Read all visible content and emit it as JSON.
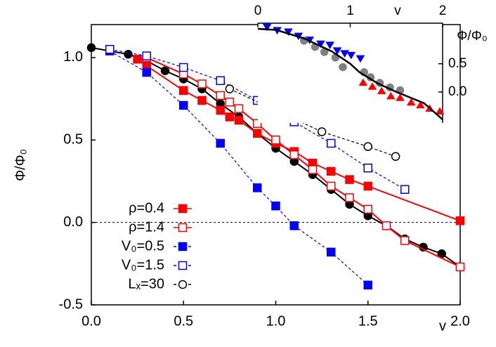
{
  "chart_data": [
    {
      "type": "scatter",
      "x_label": "v",
      "y_label": "Φ/Φ₀",
      "xlim": [
        0,
        2
      ],
      "ylim": [
        -0.5,
        1.2
      ],
      "xticks": [
        {
          "value": 0,
          "label": "0.0"
        },
        0.5,
        {
          "value": 1,
          "label": "1.0"
        },
        1.5,
        {
          "value": 2,
          "label": "2.0"
        }
      ],
      "yticks": [
        -0.5,
        {
          "value": 0,
          "label": "0.0"
        },
        0.5,
        {
          "value": 1,
          "label": "1.0"
        }
      ],
      "zero_line": true,
      "legend": "lower left",
      "series": [
        {
          "color": "#000000",
          "marker": "circle",
          "filled": true,
          "line": "solid",
          "x": [
            0,
            0.2,
            0.3,
            0.4,
            0.5,
            0.6,
            0.7,
            0.8,
            0.9,
            1.0,
            1.1,
            1.2,
            1.3,
            1.4,
            1.5,
            1.6,
            1.7,
            1.8,
            1.9,
            2.0
          ],
          "values": [
            1.06,
            1.02,
            0.98,
            0.92,
            0.87,
            0.81,
            0.72,
            0.64,
            0.54,
            0.45,
            0.37,
            0.29,
            0.2,
            0.11,
            0.04,
            -0.02,
            -0.1,
            -0.15,
            -0.19,
            -0.27
          ]
        },
        {
          "name": "ρ=0.4",
          "color": "#ff0000",
          "marker": "square",
          "filled": true,
          "line": "solid",
          "x": [
            0.25,
            0.3,
            0.5,
            0.6,
            0.7,
            0.75,
            0.8,
            0.9,
            1.0,
            1.1,
            1.2,
            1.3,
            1.4,
            1.5,
            2.0
          ],
          "values": [
            0.99,
            0.95,
            0.8,
            0.74,
            0.68,
            0.64,
            0.62,
            0.54,
            0.48,
            0.43,
            0.36,
            0.31,
            0.26,
            0.22,
            0.01
          ]
        },
        {
          "name": "ρ=1.4",
          "color": "#ff0000",
          "marker": "square",
          "filled": false,
          "line": "solid",
          "x": [
            0.3,
            0.5,
            0.6,
            0.7,
            0.75,
            0.8,
            0.9,
            1.0,
            1.1,
            1.2,
            1.3,
            1.4,
            1.5,
            1.6,
            1.7,
            2.0
          ],
          "values": [
            1.0,
            0.9,
            0.84,
            0.77,
            0.73,
            0.69,
            0.6,
            0.5,
            0.41,
            0.32,
            0.22,
            0.15,
            0.08,
            -0.02,
            -0.11,
            -0.27
          ]
        },
        {
          "name": "V₀=0.5",
          "color": "#0000ff",
          "marker": "square",
          "filled": true,
          "line": "dashed",
          "x": [
            0.1,
            0.3,
            0.5,
            0.7,
            0.9,
            1.0,
            1.1,
            1.3,
            1.5
          ],
          "values": [
            1.04,
            0.91,
            0.71,
            0.48,
            0.21,
            0.1,
            -0.02,
            -0.18,
            -0.38
          ]
        },
        {
          "name": "V₀=1.5",
          "color": "#0000ff",
          "marker": "square",
          "filled": false,
          "line": "dashed",
          "x": [
            0.1,
            0.3,
            0.5,
            0.7,
            0.9,
            1.1,
            1.3,
            1.5,
            1.7
          ],
          "values": [
            1.05,
            1.01,
            0.94,
            0.86,
            0.74,
            0.61,
            0.48,
            0.33,
            0.2
          ]
        },
        {
          "name": "Lₓ=30",
          "color": "#000000",
          "marker": "circle",
          "filled": false,
          "line": "dashed",
          "x": [
            0.75,
            1.0,
            1.25,
            1.5,
            1.65
          ],
          "values": [
            0.81,
            0.68,
            0.55,
            0.46,
            0.4
          ]
        }
      ]
    },
    {
      "type": "scatter",
      "x_label": "v",
      "y_label": "Φ/Φ₀",
      "xlim": [
        0,
        2
      ],
      "ylim": [
        -0.55,
        1.22
      ],
      "xticks": [
        0,
        1,
        2
      ],
      "yticks": [
        {
          "value": 0,
          "label": "0.0"
        },
        0.5
      ],
      "x_axis_side": "top",
      "y_axis_side": "right",
      "series": [
        {
          "color": "#0000ff",
          "marker": "triangle-down",
          "filled": true,
          "line": "none",
          "x": [
            0.1,
            0.21,
            0.33,
            0.44,
            0.56,
            0.68,
            0.78,
            0.86,
            0.94,
            1.01,
            1.11
          ],
          "values": [
            1.16,
            1.1,
            1.075,
            1.0,
            0.93,
            0.86,
            0.84,
            0.74,
            0.69,
            0.66,
            0.6
          ]
        },
        {
          "color": "#808080",
          "marker": "circle",
          "filled": true,
          "line": "none",
          "x": [
            0.5,
            0.62,
            0.72,
            0.84,
            0.92,
            1.15,
            1.22,
            1.32,
            1.43,
            1.54
          ],
          "values": [
            0.91,
            0.8,
            0.71,
            0.61,
            0.44,
            0.35,
            0.26,
            0.16,
            0.08,
            0.03
          ]
        },
        {
          "color": "#ff0000",
          "marker": "triangle-up",
          "filled": true,
          "line": "none",
          "x": [
            1.14,
            1.24,
            1.34,
            1.44,
            1.54,
            1.66,
            1.76,
            1.86,
            1.97
          ],
          "values": [
            0.16,
            0.09,
            0.01,
            -0.08,
            -0.11,
            -0.19,
            -0.24,
            -0.3,
            -0.35
          ]
        },
        {
          "color": "#000000",
          "marker": "none",
          "line": "solid",
          "x": [
            0,
            0.2,
            0.5,
            0.8,
            1.0,
            1.1,
            1.3,
            1.5,
            1.8,
            2.0
          ],
          "values": [
            1.12,
            1.1,
            0.95,
            0.72,
            0.5,
            0.35,
            0.15,
            0.0,
            -0.2,
            -0.49
          ]
        }
      ]
    }
  ]
}
